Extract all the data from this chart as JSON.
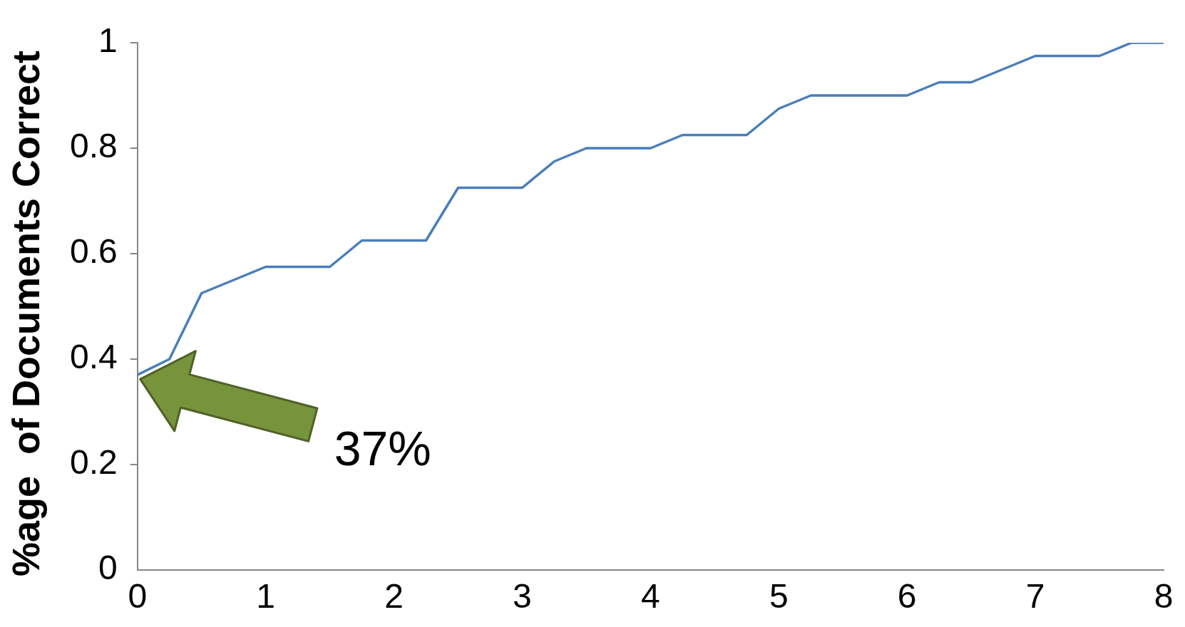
{
  "chart_data": {
    "type": "line",
    "ylabel": "%age  of Documents Correct",
    "x": [
      0,
      0.25,
      0.5,
      1,
      1.5,
      1.75,
      2.25,
      2.5,
      3,
      3.25,
      3.5,
      4,
      4.25,
      4.75,
      5,
      5.25,
      6,
      6.25,
      6.5,
      7,
      7.5,
      7.75,
      8
    ],
    "series": [
      {
        "color": "#4a7ebb",
        "values": [
          0.37,
          0.4,
          0.525,
          0.575,
          0.575,
          0.625,
          0.625,
          0.725,
          0.725,
          0.775,
          0.8,
          0.8,
          0.825,
          0.825,
          0.875,
          0.9,
          0.9,
          0.925,
          0.925,
          0.975,
          0.975,
          1,
          1
        ]
      }
    ],
    "xlim": [
      0,
      8
    ],
    "xticks": [
      0,
      1,
      2,
      3,
      4,
      5,
      6,
      7,
      8
    ],
    "ylim": [
      0,
      1
    ],
    "yticks": [
      0,
      0.2,
      0.4,
      0.6,
      0.8,
      1
    ],
    "grid": false,
    "legend": false,
    "marker": "none",
    "line_style": "solid",
    "annotations": [
      "37%"
    ]
  }
}
